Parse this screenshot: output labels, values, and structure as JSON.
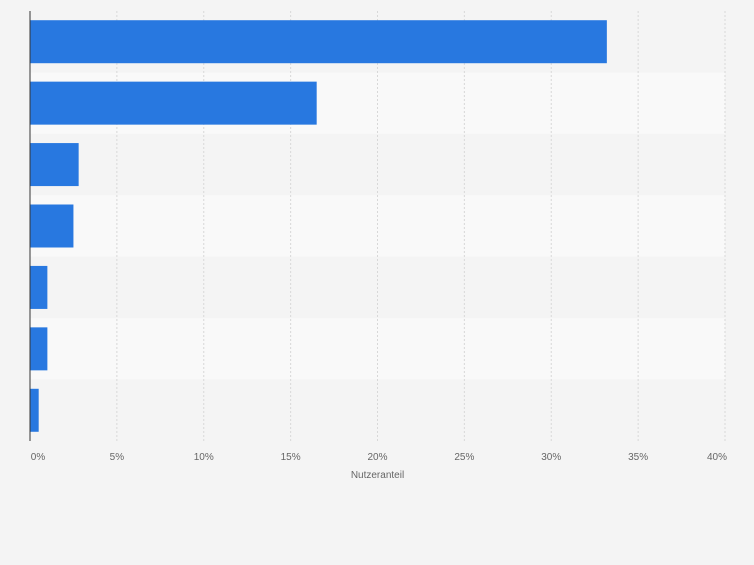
{
  "chart_data": {
    "type": "bar",
    "orientation": "horizontal",
    "categories": [
      "",
      "",
      "",
      "",
      "",
      "",
      ""
    ],
    "values": [
      33.2,
      16.5,
      2.8,
      2.5,
      1.0,
      1.0,
      0.5
    ],
    "title": "",
    "xlabel": "Nutzeranteil",
    "ylabel": "",
    "xlim": [
      0,
      40
    ],
    "xticks": [
      "0%",
      "5%",
      "10%",
      "15%",
      "20%",
      "25%",
      "30%",
      "35%",
      "40%"
    ],
    "grid": true,
    "legend": "none",
    "colors": {
      "bar": "#2878e0",
      "background": "#f4f4f4",
      "band_light": "#f9f9f9",
      "grid": "#d8d8d8",
      "axis": "#333333",
      "tick_text": "#666666"
    }
  }
}
